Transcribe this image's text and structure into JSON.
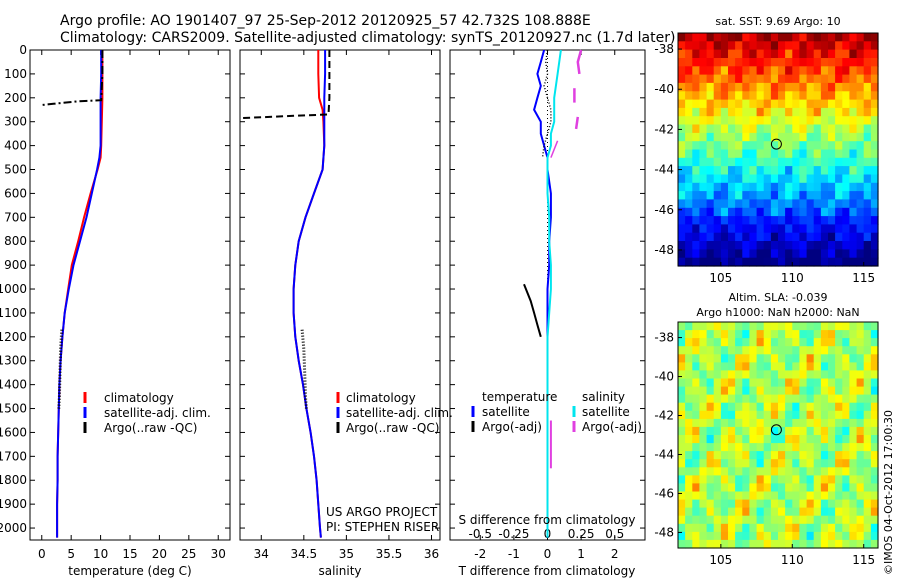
{
  "header": {
    "title_line1": "Argo profile: AO 1901407_97 25-Sep-2012 20120925_57 42.732S 108.888E",
    "title_line2": "Climatology: CARS2009. Satellite-adjusted climatology: synTS_20120927.nc (1.7d later)"
  },
  "colors": {
    "climatology": "#ff0000",
    "satellite": "#0000ff",
    "argo": "#000000",
    "s_satellite": "#00e5ee",
    "s_argo": "#e040e0"
  },
  "depth_axis": {
    "ylim": [
      0,
      2050
    ],
    "ticks": [
      "0",
      "100",
      "200",
      "300",
      "400",
      "500",
      "600",
      "700",
      "800",
      "900",
      "1000",
      "1100",
      "1200",
      "1300",
      "1400",
      "1500",
      "1600",
      "1700",
      "1800",
      "1900",
      "2000"
    ]
  },
  "chart_data": [
    {
      "type": "line",
      "xlabel": "temperature (deg C)",
      "xlim": [
        -2,
        32
      ],
      "xticks": [
        "0",
        "5",
        "10",
        "15",
        "20",
        "25",
        "30"
      ],
      "legend": [
        "climatology",
        "satellite-adj. clim.",
        "Argo(..raw -QC)"
      ],
      "series": [
        {
          "name": "climatology",
          "depth": [
            0,
            100,
            200,
            300,
            400,
            450,
            500,
            600,
            700,
            800,
            900,
            1000,
            1100,
            1200,
            1300,
            1400,
            1500,
            1600,
            1700,
            1800,
            1900,
            2000,
            2040
          ],
          "values": [
            10.3,
            10.3,
            10.3,
            10.2,
            10.1,
            10.0,
            9.5,
            8.3,
            7.2,
            6.2,
            5.1,
            4.5,
            3.9,
            3.5,
            3.2,
            3.0,
            2.9,
            2.8,
            2.7,
            2.7,
            2.6,
            2.6,
            2.6
          ]
        },
        {
          "name": "satellite-adj. clim.",
          "depth": [
            0,
            100,
            200,
            300,
            400,
            450,
            500,
            600,
            700,
            800,
            900,
            1000,
            1100,
            1200,
            1300,
            1400,
            1500,
            1600,
            1700,
            1800,
            1900,
            2000,
            2040
          ],
          "values": [
            10.1,
            10.1,
            10.0,
            10.0,
            10.0,
            9.8,
            9.4,
            8.5,
            7.6,
            6.5,
            5.4,
            4.6,
            3.9,
            3.5,
            3.2,
            3.0,
            2.9,
            2.8,
            2.7,
            2.7,
            2.6,
            2.6,
            2.6
          ]
        },
        {
          "name": "Argo(..raw -QC)",
          "depth": [
            0,
            100,
            210,
            215,
            225,
            230
          ],
          "values": [
            10.3,
            10.3,
            10.1,
            6.0,
            2.0,
            0.0
          ]
        },
        {
          "name": "Argo(..raw -QC)",
          "depth": [
            1170,
            1250,
            1350,
            1450,
            1500
          ],
          "values": [
            3.4,
            3.2,
            3.1,
            3.0,
            2.9
          ]
        }
      ]
    },
    {
      "type": "line",
      "xlabel": "salinity",
      "xlim": [
        33.75,
        36.1
      ],
      "xticks": [
        "34",
        "34.5",
        "35",
        "35.5",
        "36"
      ],
      "legend": [
        "climatology",
        "satellite-adj. clim.",
        "Argo(..raw -QC)"
      ],
      "series": [
        {
          "name": "climatology",
          "depth": [
            0,
            100,
            200,
            250,
            300,
            400,
            500,
            600,
            700,
            800,
            900,
            1000,
            1100,
            1200,
            1300,
            1400,
            1500,
            1600,
            1700,
            1800,
            1900,
            2000,
            2040
          ],
          "values": [
            34.67,
            34.67,
            34.68,
            34.72,
            34.73,
            34.74,
            34.72,
            34.62,
            34.52,
            34.44,
            34.4,
            34.38,
            34.38,
            34.4,
            34.44,
            34.49,
            34.53,
            34.58,
            34.62,
            34.65,
            34.67,
            34.69,
            34.7
          ]
        },
        {
          "name": "satellite-adj. clim.",
          "depth": [
            0,
            100,
            200,
            250,
            300,
            400,
            500,
            600,
            700,
            800,
            900,
            1000,
            1100,
            1200,
            1300,
            1400,
            1500,
            1600,
            1700,
            1800,
            1900,
            2000,
            2040
          ],
          "values": [
            34.75,
            34.75,
            34.74,
            34.74,
            34.74,
            34.74,
            34.72,
            34.62,
            34.52,
            34.44,
            34.4,
            34.38,
            34.38,
            34.4,
            34.44,
            34.49,
            34.53,
            34.58,
            34.62,
            34.65,
            34.67,
            34.69,
            34.7
          ]
        },
        {
          "name": "Argo(..raw -QC)",
          "depth": [
            0,
            100,
            200,
            270,
            275,
            280,
            285
          ],
          "values": [
            34.8,
            34.8,
            34.8,
            34.79,
            34.4,
            34.1,
            33.75
          ]
        },
        {
          "name": "Argo(..raw -QC)",
          "depth": [
            1170,
            1250,
            1350,
            1450,
            1500
          ],
          "values": [
            34.48,
            34.5,
            34.51,
            34.52,
            34.53
          ]
        }
      ]
    },
    {
      "type": "line",
      "xlabel": "T difference from climatology",
      "title": "S difference from climatology",
      "xlim": [
        -2.9,
        2.9
      ],
      "xticks": [
        "-2",
        "-1",
        "0",
        "1",
        "2"
      ],
      "top_ticks": [
        "-0.5",
        "-0.25",
        "0",
        "0.25",
        "0.5"
      ],
      "legend": [
        "temperature",
        "satellite",
        "Argo(-adj)",
        "salinity",
        "satellite",
        "Argo(-adj)"
      ],
      "series": [
        {
          "name": "satellite",
          "depth": [
            0,
            50,
            100,
            150,
            200,
            250,
            300,
            350,
            400,
            450,
            500,
            600,
            700,
            800,
            900,
            1000,
            1100,
            1200,
            1300,
            1400,
            1500,
            1600,
            1700,
            1800,
            1900,
            2000,
            2040
          ],
          "values": [
            -0.1,
            -0.2,
            -0.3,
            -0.2,
            -0.3,
            -0.4,
            -0.2,
            -0.2,
            -0.1,
            0.0,
            0.0,
            0.1,
            0.1,
            0.05,
            0.05,
            0.0,
            0.0,
            0.0,
            0.0,
            0.0,
            0.0,
            0.0,
            0.0,
            0.0,
            0.0,
            0.0,
            0.0
          ]
        },
        {
          "name": "Argo(-adj)",
          "depth": [
            0,
            50,
            100,
            150,
            200,
            250,
            300,
            350,
            400,
            450
          ],
          "values": [
            0.0,
            -0.05,
            0.0,
            -0.1,
            0.0,
            0.1,
            0.1,
            0.0,
            -0.1,
            -0.15
          ]
        },
        {
          "name": "Argo(-adj)",
          "depth": [
            980,
            1050,
            1100,
            1150,
            1200
          ],
          "values": [
            -0.7,
            -0.5,
            -0.4,
            -0.3,
            -0.2
          ]
        },
        {
          "name": "satellite",
          "depth": [
            0,
            100,
            200,
            300,
            350,
            400,
            450,
            500,
            600,
            700,
            800,
            900,
            1000,
            1100,
            1200,
            1300,
            1400,
            1500,
            1600,
            1700,
            1800,
            1900,
            2000,
            2040
          ],
          "values": [
            0.4,
            0.3,
            0.2,
            0.2,
            0.1,
            0.1,
            0.0,
            0.0,
            0.0,
            0.05,
            0.05,
            0.1,
            0.1,
            0.05,
            0.0,
            0.0,
            0.0,
            0.0,
            0.0,
            0.0,
            0.0,
            0.0,
            0.0,
            0.0
          ]
        },
        {
          "name": "Argo(-adj)",
          "depth": [
            0,
            50,
            100
          ],
          "values": [
            1.0,
            0.9,
            0.95
          ]
        },
        {
          "name": "Argo(-adj)",
          "depth": [
            160,
            220
          ],
          "values": [
            0.8,
            0.8
          ]
        },
        {
          "name": "Argo(-adj)",
          "depth": [
            280,
            330
          ],
          "values": [
            0.9,
            0.85
          ]
        },
        {
          "name": "Argo(-adj)",
          "depth": [
            380,
            450
          ],
          "values": [
            0.3,
            0.1
          ]
        },
        {
          "name": "Argo(-adj)",
          "depth": [
            1550,
            1750
          ],
          "values": [
            0.1,
            0.1
          ]
        }
      ]
    },
    {
      "type": "heatmap",
      "title": "sat. SST: 9.69 Argo: 10",
      "xlim": [
        102,
        116
      ],
      "ylim": [
        -48.8,
        -37.2
      ],
      "xticks": [
        "105",
        "110",
        "115"
      ],
      "yticks": [
        "-38",
        "-40",
        "-42",
        "-44",
        "-46",
        "-48"
      ],
      "marker": {
        "lon": 108.888,
        "lat": -42.732
      }
    },
    {
      "type": "heatmap",
      "title": "Altim. SLA: -0.039",
      "subtitle": "Argo h1000: NaN h2000: NaN",
      "xlim": [
        102,
        116
      ],
      "ylim": [
        -48.8,
        -37.2
      ],
      "xticks": [
        "105",
        "110",
        "115"
      ],
      "yticks": [
        "-38",
        "-40",
        "-42",
        "-44",
        "-46",
        "-48"
      ],
      "marker": {
        "lon": 108.888,
        "lat": -42.732
      }
    }
  ],
  "annotations": {
    "project": "US ARGO PROJECT",
    "pi": "PI: STEPHEN RISER",
    "stamp": "©IMOS 04-Oct-2012 17:00:30"
  }
}
